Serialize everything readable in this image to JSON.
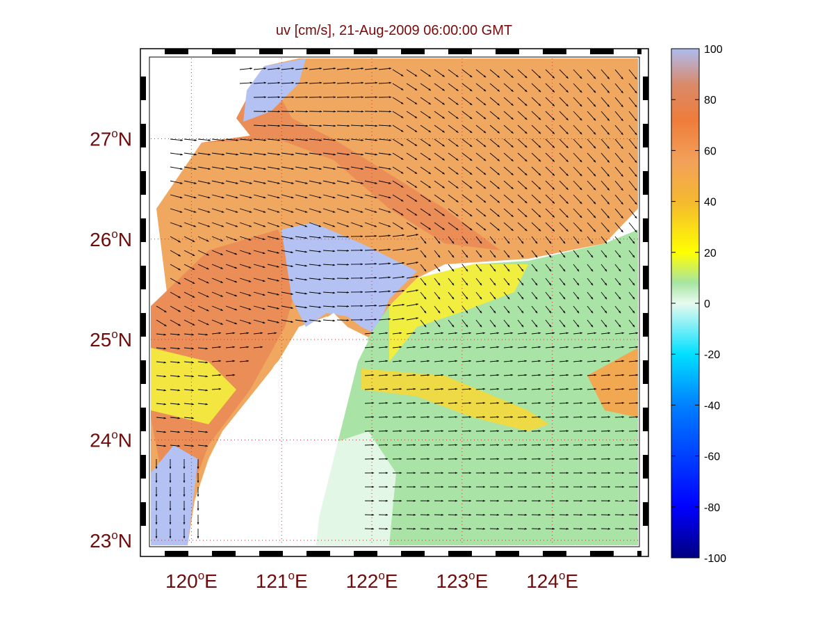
{
  "title": "uv [cm/s], 21-Aug-2009 06:00:00 GMT",
  "map": {
    "lon_range": [
      119.55,
      124.95
    ],
    "lat_range": [
      22.95,
      27.8
    ],
    "lat_labels": [
      {
        "lat": 23,
        "num": "23",
        "deg": "o",
        "hem": "N"
      },
      {
        "lat": 24,
        "num": "24",
        "deg": "o",
        "hem": "N"
      },
      {
        "lat": 25,
        "num": "25",
        "deg": "o",
        "hem": "N"
      },
      {
        "lat": 26,
        "num": "26",
        "deg": "o",
        "hem": "N"
      },
      {
        "lat": 27,
        "num": "27",
        "deg": "o",
        "hem": "N"
      }
    ],
    "lon_labels": [
      {
        "lon": 120,
        "num": "120",
        "deg": "o",
        "hem": "E"
      },
      {
        "lon": 121,
        "num": "121",
        "deg": "o",
        "hem": "E"
      },
      {
        "lon": 122,
        "num": "122",
        "deg": "o",
        "hem": "E"
      },
      {
        "lon": 123,
        "num": "123",
        "deg": "o",
        "hem": "E"
      },
      {
        "lon": 124,
        "num": "124",
        "deg": "o",
        "hem": "E"
      }
    ],
    "grid": "on (dotted red)",
    "land_color": "#ffffff",
    "arrow_color": "#000000"
  },
  "colorbar": {
    "ticks": [
      "100",
      "80",
      "60",
      "40",
      "20",
      "0",
      "-20",
      "-40",
      "-60",
      "-80",
      "-100"
    ],
    "range": [
      -100,
      100
    ],
    "colors": [
      "#000080",
      "#0000ff",
      "#0080ff",
      "#00e0ff",
      "#e8fbef",
      "#a6e5a2",
      "#ffff00",
      "#f5b830",
      "#f2a05a",
      "#ef7c3a",
      "#d98a6a",
      "#aebcf0"
    ]
  }
}
